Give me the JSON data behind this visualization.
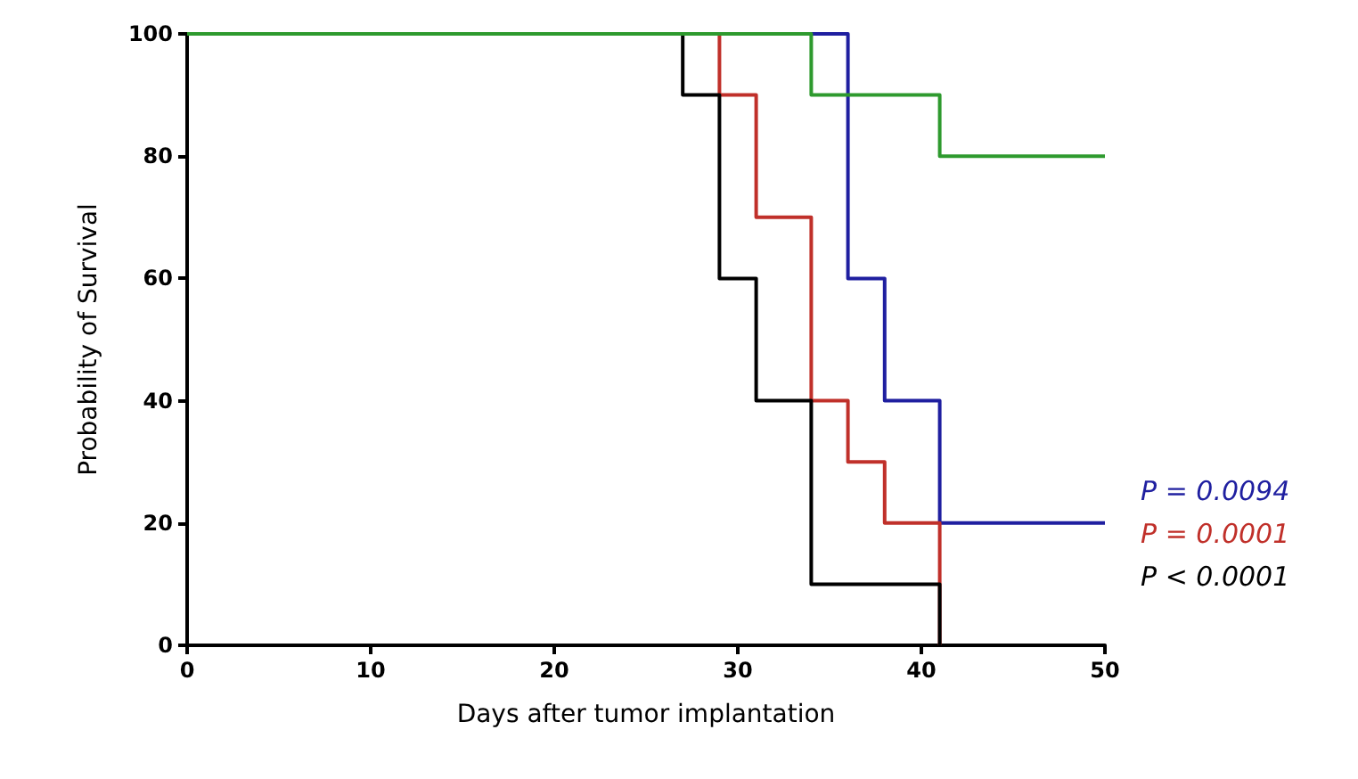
{
  "chart_data": {
    "type": "step",
    "xlabel": "Days after tumor implantation",
    "ylabel": "Probability of Survival",
    "series": [
      {
        "color": "#1f1fa0",
        "x": [
          0,
          36,
          38,
          41,
          50
        ],
        "values": [
          100,
          60,
          40,
          20,
          20
        ]
      },
      {
        "color": "#c0302a",
        "x": [
          0,
          29,
          31,
          34,
          36,
          38,
          41
        ],
        "values": [
          100,
          90,
          70,
          40,
          30,
          20,
          0
        ]
      },
      {
        "color": "#000000",
        "x": [
          0,
          27,
          29,
          31,
          34,
          41
        ],
        "values": [
          100,
          90,
          60,
          40,
          10,
          0
        ]
      },
      {
        "color": "#2e9a2e",
        "x": [
          0,
          34,
          41,
          50
        ],
        "values": [
          100,
          90,
          80,
          80
        ]
      }
    ],
    "annotations": [
      "P = 0.0094",
      "P = 0.0001",
      "P < 0.0001"
    ],
    "xlim": [
      0,
      50
    ],
    "xticks": [
      0,
      10,
      20,
      30,
      40,
      50
    ],
    "ylim": [
      0,
      100
    ],
    "yticks": [
      0,
      20,
      40,
      60,
      80,
      100
    ],
    "grid": false,
    "marker": "none",
    "line_style": "solid"
  }
}
